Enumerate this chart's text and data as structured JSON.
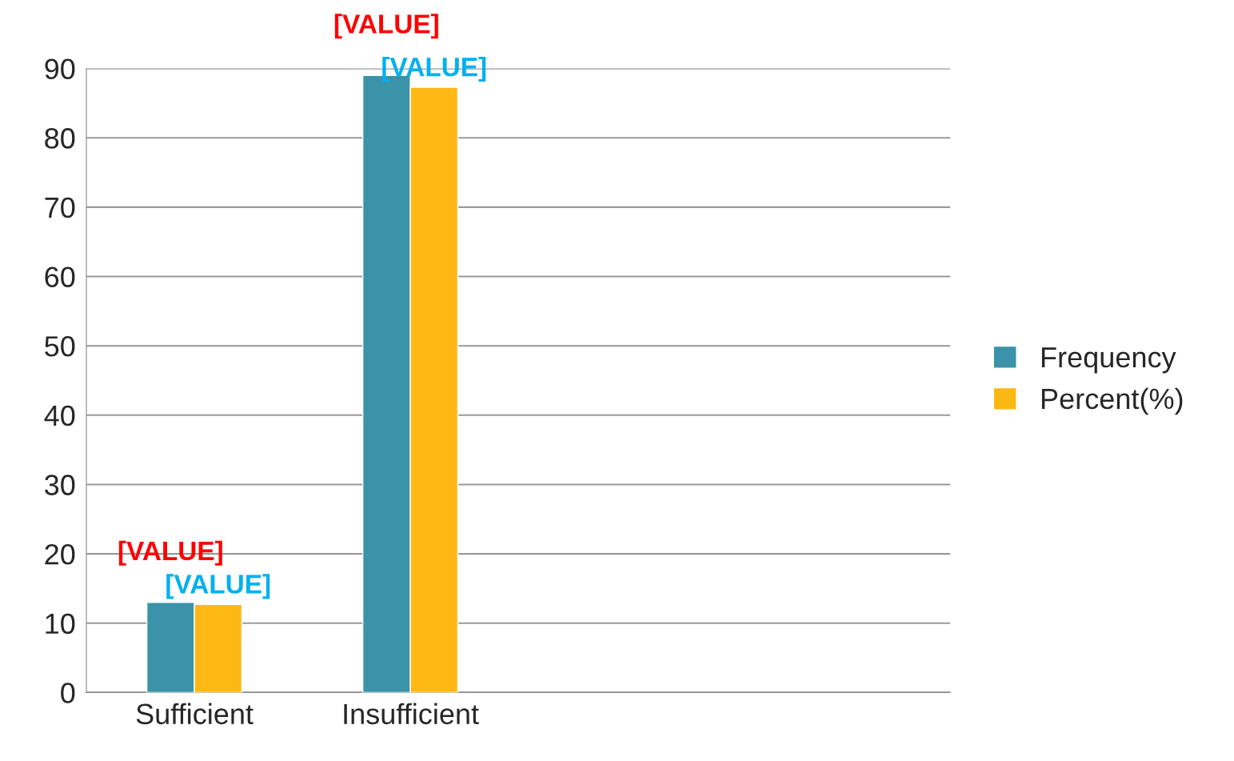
{
  "chart_data": {
    "type": "bar",
    "categories": [
      "Sufficient",
      "Insufficient",
      null,
      null
    ],
    "series": [
      {
        "name": "Frequency",
        "color": "#3a93a8",
        "values": [
          13,
          89,
          null,
          null
        ],
        "value_labels": [
          "[VALUE]",
          "[VALUE]",
          null,
          null
        ]
      },
      {
        "name": "Percent(%)",
        "color": "#fdb813",
        "values": [
          12.7,
          87.3,
          null,
          null
        ],
        "value_labels": [
          "[VALUE]",
          "[VALUE]",
          null,
          null
        ]
      }
    ],
    "ylim": [
      0,
      90
    ],
    "yticks": [
      0,
      10,
      20,
      30,
      40,
      50,
      60,
      70,
      80,
      90
    ],
    "grid": "y",
    "legend": "right"
  }
}
